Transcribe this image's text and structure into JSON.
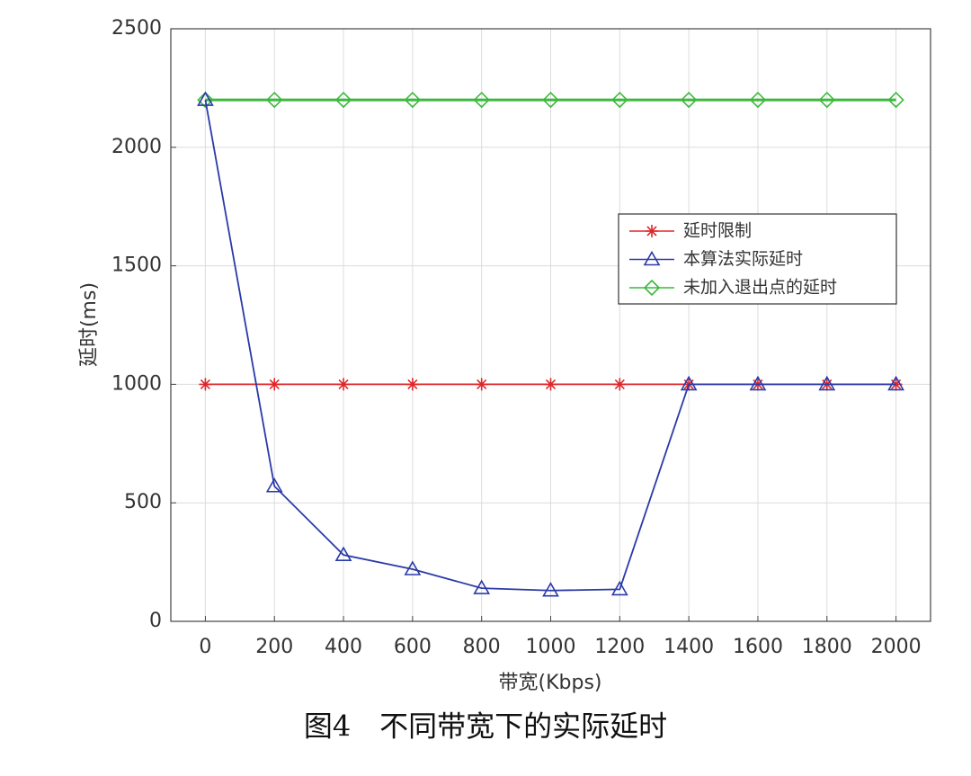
{
  "chart_data": {
    "type": "line",
    "caption": "图4　不同带宽下的实际延时",
    "xlabel": "带宽(Kbps)",
    "ylabel": "延时(ms)",
    "x": [
      0,
      200,
      400,
      600,
      800,
      1000,
      1200,
      1400,
      1600,
      1800,
      2000
    ],
    "series": [
      {
        "name": "延时限制",
        "color": "#e0262a",
        "marker": "star",
        "values": [
          1000,
          1000,
          1000,
          1000,
          1000,
          1000,
          1000,
          1000,
          1000,
          1000,
          1000
        ]
      },
      {
        "name": "本算法实际延时",
        "color": "#2a3aa8",
        "marker": "triangle",
        "values": [
          2200,
          570,
          280,
          220,
          140,
          130,
          135,
          1000,
          1000,
          1000,
          1000
        ]
      },
      {
        "name": "未加入退出点的延时",
        "color": "#3cb93c",
        "marker": "diamond",
        "values": [
          2200,
          2200,
          2200,
          2200,
          2200,
          2200,
          2200,
          2200,
          2200,
          2200,
          2200
        ]
      }
    ],
    "xlim": [
      -100,
      2100
    ],
    "xticks": [
      0,
      200,
      400,
      600,
      800,
      1000,
      1200,
      1400,
      1600,
      1800,
      2000
    ],
    "ylim": [
      0,
      2500
    ],
    "yticks": [
      0,
      500,
      1000,
      1500,
      2000,
      2500
    ],
    "grid": true,
    "legend": "right"
  }
}
